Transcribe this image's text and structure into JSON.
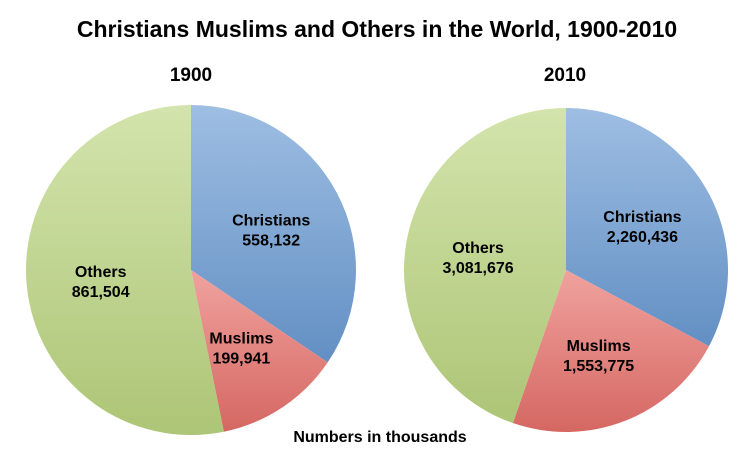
{
  "chart_data": {
    "title": "Christians Muslims and Others in the World, 1900-2010",
    "footnote": "Numbers in thousands",
    "colors": {
      "Christians": "#6a9bd4",
      "Muslims": "#e8706a",
      "Others": "#bcd680"
    },
    "charts": [
      {
        "type": "pie",
        "title": "1900",
        "categories": [
          "Christians",
          "Muslims",
          "Others"
        ],
        "values": [
          558132,
          199941,
          861504
        ],
        "value_labels": [
          "558,132",
          "199,941",
          "861,504"
        ]
      },
      {
        "type": "pie",
        "title": "2010",
        "categories": [
          "Christians",
          "Muslims",
          "Others"
        ],
        "values": [
          2260436,
          1553775,
          3081676
        ],
        "value_labels": [
          "2,260,436",
          "1,553,775",
          "3,081,676"
        ]
      }
    ]
  }
}
